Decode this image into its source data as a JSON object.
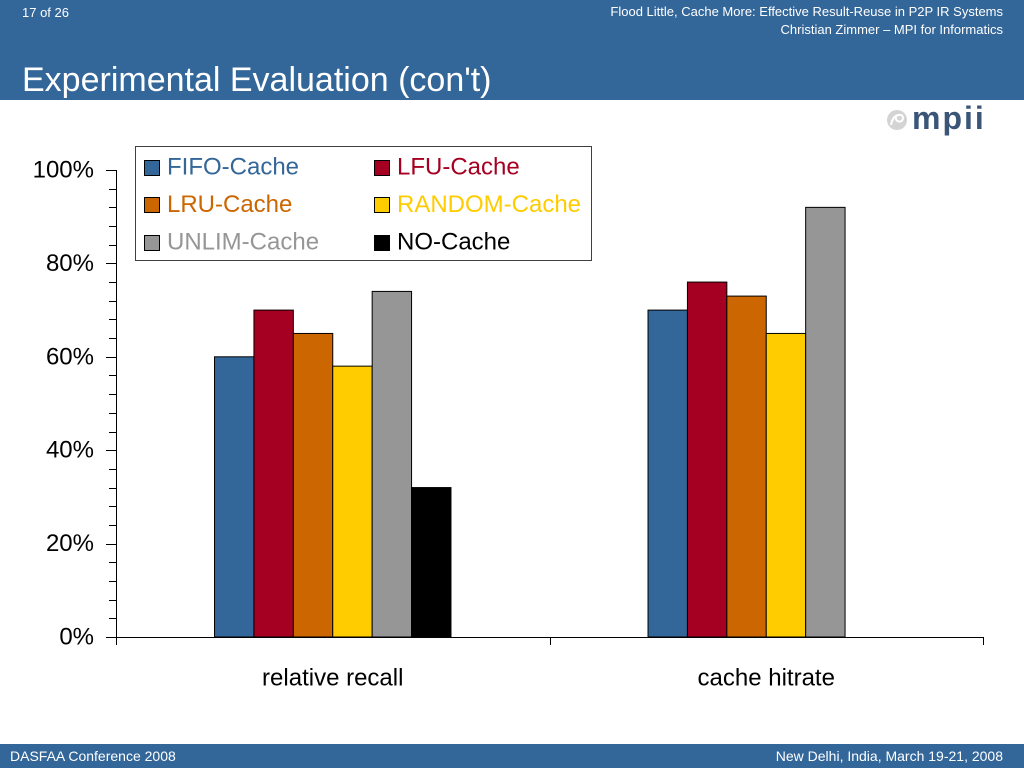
{
  "slide": {
    "page_indicator": "17 of 26",
    "presentation_title": "Flood Little, Cache More: Effective Result-Reuse in P2P IR Systems",
    "presentation_author": "Christian Zimmer – MPI for Informatics",
    "title": "Experimental Evaluation (con't)",
    "logo_text": "mpii",
    "footer_left": "DASFAA Conference 2008",
    "footer_right": "New Delhi, India, March 19-21, 2008"
  },
  "theme": {
    "band_color": "#336699",
    "band_text_color": "#ffffff",
    "logo_color": "#3a5577"
  },
  "chart_data": {
    "type": "bar",
    "categories": [
      "relative recall",
      "cache hitrate"
    ],
    "series": [
      {
        "name": "FIFO-Cache",
        "color": "#336699",
        "values": [
          60,
          70
        ]
      },
      {
        "name": "LFU-Cache",
        "color": "#A50021",
        "values": [
          70,
          76
        ]
      },
      {
        "name": "LRU-Cache",
        "color": "#CC6600",
        "values": [
          65,
          73
        ]
      },
      {
        "name": "RANDOM-Cache",
        "color": "#FFCC00",
        "values": [
          58,
          65
        ]
      },
      {
        "name": "UNLIM-Cache",
        "color": "#969696",
        "values": [
          74,
          92
        ]
      },
      {
        "name": "NO-Cache",
        "color": "#000000",
        "values": [
          32,
          0
        ]
      }
    ],
    "ylim": [
      0,
      100
    ],
    "y_tick_values": [
      0,
      20,
      40,
      60,
      80,
      100
    ],
    "y_tick_labels": [
      "0%",
      "20%",
      "40%",
      "60%",
      "80%",
      "100%"
    ],
    "grid": false,
    "legend": "top-left"
  }
}
